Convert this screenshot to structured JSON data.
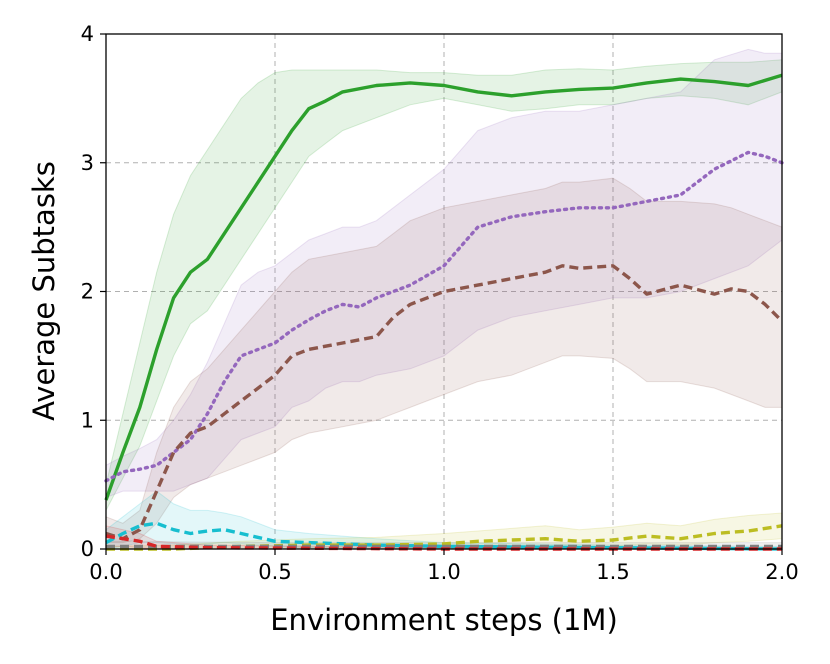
{
  "chart_data": {
    "type": "line",
    "title": "",
    "xlabel": "Environment steps (1M)",
    "ylabel": "Average Subtasks",
    "xlim": [
      0.0,
      2.0
    ],
    "ylim": [
      0,
      4
    ],
    "xticks": [
      "0.0",
      "0.5",
      "1.0",
      "1.5",
      "2.0"
    ],
    "yticks": [
      "0",
      "1",
      "2",
      "3",
      "4"
    ],
    "grid": true,
    "legend": "none",
    "series": [
      {
        "color": "#2ca02c",
        "style": "solid",
        "x": [
          0.0,
          0.05,
          0.1,
          0.15,
          0.2,
          0.25,
          0.3,
          0.35,
          0.4,
          0.45,
          0.5,
          0.55,
          0.6,
          0.65,
          0.7,
          0.8,
          0.9,
          1.0,
          1.1,
          1.2,
          1.3,
          1.4,
          1.5,
          1.6,
          1.7,
          1.8,
          1.9,
          2.0
        ],
        "y": [
          0.38,
          0.75,
          1.1,
          1.55,
          1.95,
          2.15,
          2.25,
          2.45,
          2.65,
          2.85,
          3.05,
          3.25,
          3.42,
          3.48,
          3.55,
          3.6,
          3.62,
          3.6,
          3.55,
          3.52,
          3.55,
          3.57,
          3.58,
          3.62,
          3.65,
          3.63,
          3.6,
          3.68
        ],
        "lower": [
          0.3,
          0.55,
          0.8,
          1.15,
          1.5,
          1.75,
          1.85,
          2.05,
          2.25,
          2.45,
          2.65,
          2.85,
          3.05,
          3.15,
          3.25,
          3.35,
          3.45,
          3.5,
          3.45,
          3.4,
          3.42,
          3.45,
          3.45,
          3.5,
          3.52,
          3.5,
          3.45,
          3.55
        ],
        "upper": [
          0.5,
          1.05,
          1.6,
          2.15,
          2.6,
          2.9,
          3.1,
          3.3,
          3.5,
          3.62,
          3.7,
          3.72,
          3.72,
          3.72,
          3.72,
          3.72,
          3.7,
          3.7,
          3.68,
          3.68,
          3.72,
          3.73,
          3.72,
          3.75,
          3.77,
          3.78,
          3.78,
          3.8
        ]
      },
      {
        "color": "#9467bd",
        "style": "dotted",
        "x": [
          0.0,
          0.05,
          0.1,
          0.15,
          0.2,
          0.25,
          0.3,
          0.35,
          0.4,
          0.45,
          0.5,
          0.55,
          0.6,
          0.65,
          0.7,
          0.75,
          0.8,
          0.9,
          1.0,
          1.05,
          1.1,
          1.2,
          1.3,
          1.4,
          1.5,
          1.6,
          1.7,
          1.8,
          1.9,
          1.95,
          2.0
        ],
        "y": [
          0.53,
          0.6,
          0.62,
          0.65,
          0.75,
          0.85,
          1.05,
          1.3,
          1.5,
          1.55,
          1.6,
          1.7,
          1.78,
          1.85,
          1.9,
          1.88,
          1.95,
          2.05,
          2.2,
          2.35,
          2.5,
          2.58,
          2.62,
          2.65,
          2.65,
          2.7,
          2.75,
          2.95,
          3.08,
          3.05,
          3.0
        ],
        "lower": [
          0.4,
          0.45,
          0.45,
          0.45,
          0.45,
          0.5,
          0.55,
          0.7,
          0.85,
          0.9,
          0.95,
          1.1,
          1.15,
          1.25,
          1.3,
          1.3,
          1.35,
          1.4,
          1.5,
          1.6,
          1.7,
          1.8,
          1.85,
          1.9,
          1.95,
          1.95,
          2.0,
          2.1,
          2.2,
          2.3,
          2.4
        ],
        "upper": [
          0.65,
          0.72,
          0.78,
          0.85,
          1.0,
          1.2,
          1.45,
          1.75,
          2.05,
          2.15,
          2.2,
          2.3,
          2.4,
          2.45,
          2.5,
          2.5,
          2.55,
          2.75,
          2.95,
          3.1,
          3.25,
          3.35,
          3.4,
          3.4,
          3.45,
          3.5,
          3.55,
          3.8,
          3.88,
          3.85,
          3.85
        ]
      },
      {
        "color": "#8c564b",
        "style": "dashed",
        "x": [
          0.0,
          0.05,
          0.1,
          0.15,
          0.2,
          0.25,
          0.3,
          0.35,
          0.4,
          0.45,
          0.5,
          0.55,
          0.6,
          0.7,
          0.8,
          0.85,
          0.9,
          0.95,
          1.0,
          1.1,
          1.2,
          1.3,
          1.35,
          1.4,
          1.5,
          1.55,
          1.6,
          1.7,
          1.8,
          1.85,
          1.9,
          1.95,
          2.0
        ],
        "y": [
          0.12,
          0.08,
          0.15,
          0.45,
          0.75,
          0.9,
          0.95,
          1.05,
          1.15,
          1.25,
          1.35,
          1.5,
          1.55,
          1.6,
          1.65,
          1.8,
          1.9,
          1.95,
          2.0,
          2.05,
          2.1,
          2.15,
          2.2,
          2.18,
          2.2,
          2.1,
          1.98,
          2.05,
          1.98,
          2.02,
          2.0,
          1.9,
          1.77
        ],
        "lower": [
          0.05,
          0.05,
          0.08,
          0.2,
          0.4,
          0.5,
          0.55,
          0.6,
          0.65,
          0.7,
          0.75,
          0.85,
          0.9,
          0.95,
          1.0,
          1.05,
          1.1,
          1.15,
          1.2,
          1.3,
          1.35,
          1.45,
          1.5,
          1.5,
          1.48,
          1.4,
          1.3,
          1.3,
          1.25,
          1.2,
          1.15,
          1.1,
          1.1
        ],
        "upper": [
          0.25,
          0.2,
          0.3,
          0.75,
          1.1,
          1.3,
          1.4,
          1.55,
          1.7,
          1.85,
          2.0,
          2.15,
          2.25,
          2.3,
          2.35,
          2.45,
          2.55,
          2.6,
          2.65,
          2.7,
          2.75,
          2.8,
          2.85,
          2.85,
          2.88,
          2.8,
          2.7,
          2.7,
          2.68,
          2.65,
          2.6,
          2.55,
          2.5
        ]
      },
      {
        "color": "#17becf",
        "style": "dashed",
        "x": [
          0.0,
          0.05,
          0.1,
          0.15,
          0.2,
          0.25,
          0.3,
          0.35,
          0.4,
          0.5,
          0.6,
          0.8,
          1.0,
          1.5,
          2.0
        ],
        "y": [
          0.05,
          0.12,
          0.18,
          0.2,
          0.15,
          0.12,
          0.14,
          0.15,
          0.12,
          0.06,
          0.05,
          0.03,
          0.02,
          0.01,
          0.0
        ],
        "lower": [
          0.0,
          0.02,
          0.05,
          0.05,
          0.04,
          0.03,
          0.04,
          0.05,
          0.04,
          0.02,
          0.01,
          0.0,
          0.0,
          0.0,
          0.0
        ],
        "upper": [
          0.15,
          0.25,
          0.35,
          0.45,
          0.35,
          0.3,
          0.3,
          0.28,
          0.25,
          0.15,
          0.12,
          0.08,
          0.05,
          0.03,
          0.02
        ]
      },
      {
        "color": "#bcbd22",
        "style": "dashed",
        "x": [
          0.0,
          0.2,
          0.4,
          0.6,
          0.8,
          1.0,
          1.1,
          1.2,
          1.3,
          1.4,
          1.5,
          1.6,
          1.7,
          1.8,
          1.9,
          2.0
        ],
        "y": [
          0.0,
          0.0,
          0.02,
          0.03,
          0.03,
          0.04,
          0.06,
          0.07,
          0.08,
          0.06,
          0.07,
          0.1,
          0.08,
          0.12,
          0.14,
          0.18
        ],
        "lower": [
          0.0,
          0.0,
          0.0,
          0.0,
          0.0,
          0.0,
          0.01,
          0.02,
          0.02,
          0.01,
          0.02,
          0.04,
          0.03,
          0.05,
          0.06,
          0.08
        ],
        "upper": [
          0.02,
          0.03,
          0.06,
          0.08,
          0.09,
          0.12,
          0.14,
          0.16,
          0.18,
          0.15,
          0.17,
          0.2,
          0.18,
          0.23,
          0.26,
          0.28
        ]
      },
      {
        "color": "#7f7f7f",
        "style": "dashed",
        "x": [
          0.0,
          0.5,
          1.0,
          1.5,
          2.0
        ],
        "y": [
          0.02,
          0.02,
          0.02,
          0.02,
          0.02
        ],
        "lower": [
          0.0,
          0.0,
          0.0,
          0.0,
          0.0
        ],
        "upper": [
          0.06,
          0.05,
          0.05,
          0.05,
          0.05
        ]
      },
      {
        "color": "#d62728",
        "style": "dashed",
        "x": [
          0.0,
          0.05,
          0.1,
          0.15,
          0.3,
          1.0,
          2.0
        ],
        "y": [
          0.1,
          0.08,
          0.06,
          0.02,
          0.01,
          0.0,
          0.0
        ],
        "lower": [
          0.02,
          0.02,
          0.01,
          0.0,
          0.0,
          0.0,
          0.0
        ],
        "upper": [
          0.18,
          0.15,
          0.12,
          0.06,
          0.03,
          0.01,
          0.0
        ]
      }
    ]
  }
}
